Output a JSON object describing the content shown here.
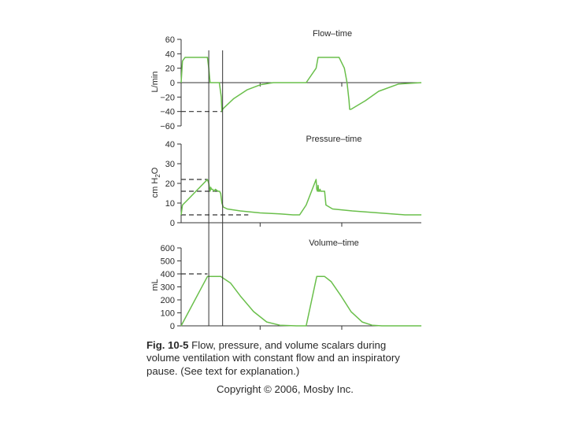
{
  "chart_data": [
    {
      "type": "line",
      "title": "Flow–time",
      "ylabel": "L/min",
      "ylim": [
        -60,
        60
      ],
      "y_ticks": [
        "60",
        "40",
        "20",
        "0",
        "−20",
        "−40",
        "−60"
      ],
      "grid": false,
      "series": [
        {
          "color": "#6abf4b",
          "x": [
            0,
            2,
            6,
            40,
            42,
            44,
            58,
            61,
            62,
            63,
            65,
            80,
            100,
            120,
            140,
            160,
            190,
            205,
            208,
            209,
            211,
            240,
            248,
            252,
            255,
            256,
            258,
            280,
            300,
            330,
            365
          ],
          "values": [
            0,
            30,
            35,
            35,
            20,
            0,
            0,
            -20,
            -40,
            -37,
            -35,
            -22,
            -10,
            -3,
            0,
            0,
            0,
            20,
            35,
            35,
            35,
            35,
            20,
            0,
            -25,
            -37,
            -37,
            -25,
            -12,
            -2,
            0
          ]
        }
      ],
      "reference_values": {
        "peak_expiratory_flow": -40
      }
    },
    {
      "type": "line",
      "title": "Pressure–time",
      "ylabel": "cm H2O",
      "ylim": [
        0,
        40
      ],
      "y_ticks": [
        "40",
        "30",
        "20",
        "10",
        "0"
      ],
      "grid": false,
      "series": [
        {
          "color": "#6abf4b",
          "x": [
            0,
            2,
            8,
            40,
            42,
            44,
            45,
            46,
            47,
            48,
            50,
            52,
            56,
            58,
            60,
            62,
            64,
            70,
            90,
            120,
            150,
            170,
            180,
            190,
            205,
            206,
            207,
            208,
            209,
            210,
            211,
            212,
            215,
            218,
            220,
            230,
            260,
            300,
            340,
            365
          ],
          "values": [
            4,
            9,
            11,
            22,
            20,
            16,
            18,
            17,
            17,
            17,
            16,
            17,
            16,
            16,
            15,
            10,
            8,
            7,
            6,
            5,
            4.5,
            4,
            4,
            9,
            22,
            17,
            16,
            19,
            16,
            16,
            17,
            16,
            16,
            16,
            9,
            7,
            6,
            5,
            4,
            4
          ]
        }
      ],
      "reference_values": {
        "peak_pressure": 22,
        "plateau_pressure": 16,
        "peep": 4
      }
    },
    {
      "type": "line",
      "title": "Volume–time",
      "ylabel": "mL",
      "ylim": [
        0,
        600
      ],
      "y_ticks": [
        "600",
        "500",
        "400",
        "300",
        "200",
        "100",
        "0"
      ],
      "grid": false,
      "series": [
        {
          "color": "#6abf4b",
          "x": [
            0,
            40,
            60,
            75,
            90,
            110,
            130,
            150,
            175,
            190,
            206,
            218,
            228,
            243,
            258,
            275,
            290,
            305,
            330,
            365
          ],
          "values": [
            0,
            380,
            380,
            330,
            230,
            110,
            30,
            5,
            0,
            0,
            380,
            380,
            340,
            230,
            110,
            30,
            5,
            0,
            0,
            0
          ]
        }
      ],
      "reference_values": {
        "tidal_volume": 400
      }
    }
  ],
  "caption": {
    "label": "Fig. 10-5",
    "text": " Flow, pressure, and volume scalars during volume ventilation with constant flow and an inspiratory pause. (See text for explanation.)"
  },
  "copyright": "Copyright © 2006, Mosby Inc."
}
